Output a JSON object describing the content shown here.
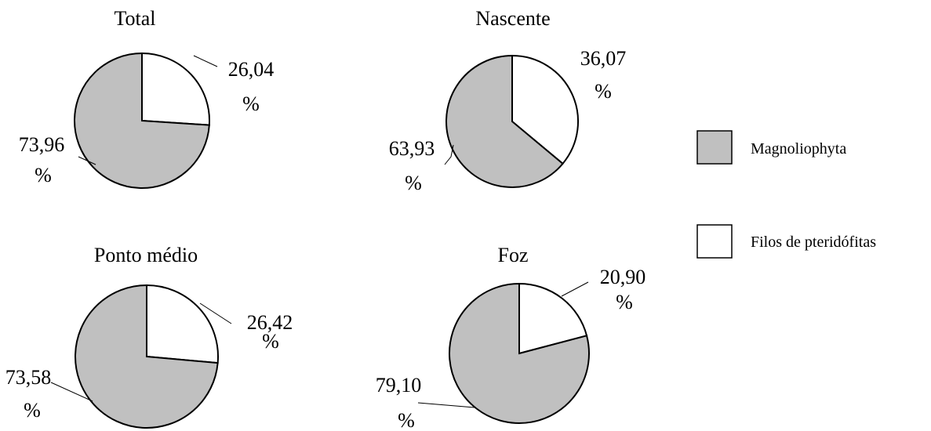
{
  "colors": {
    "magnoliophyta": "#c0c0c0",
    "pteridofitas": "#ffffff",
    "outline": "#000000"
  },
  "legend": {
    "items": [
      {
        "label": "Magnoliophyta",
        "color": "#c0c0c0"
      },
      {
        "label": "Filos de pteridófitas",
        "color": "#ffffff"
      }
    ]
  },
  "chart_data": [
    {
      "type": "pie",
      "title": "Total",
      "categories": [
        "Filos de pteridófitas",
        "Magnoliophyta"
      ],
      "values": [
        26.04,
        73.96
      ],
      "value_labels": [
        [
          "26,04",
          "%"
        ],
        [
          "73,96",
          "%"
        ]
      ]
    },
    {
      "type": "pie",
      "title": "Nascente",
      "categories": [
        "Filos de pteridófitas",
        "Magnoliophyta"
      ],
      "values": [
        36.07,
        63.93
      ],
      "value_labels": [
        [
          "36,07",
          "%"
        ],
        [
          "63,93",
          "%"
        ]
      ]
    },
    {
      "type": "pie",
      "title": "Ponto médio",
      "categories": [
        "Filos de pteridófitas",
        "Magnoliophyta"
      ],
      "values": [
        26.42,
        73.58
      ],
      "value_labels": [
        [
          "26,42",
          "%"
        ],
        [
          "73,58",
          "%"
        ]
      ]
    },
    {
      "type": "pie",
      "title": "Foz",
      "categories": [
        "Filos de pteridófitas",
        "Magnoliophyta"
      ],
      "values": [
        20.9,
        79.1
      ],
      "value_labels": [
        [
          "20,90",
          "%"
        ],
        [
          "79,10",
          "%"
        ]
      ]
    }
  ]
}
